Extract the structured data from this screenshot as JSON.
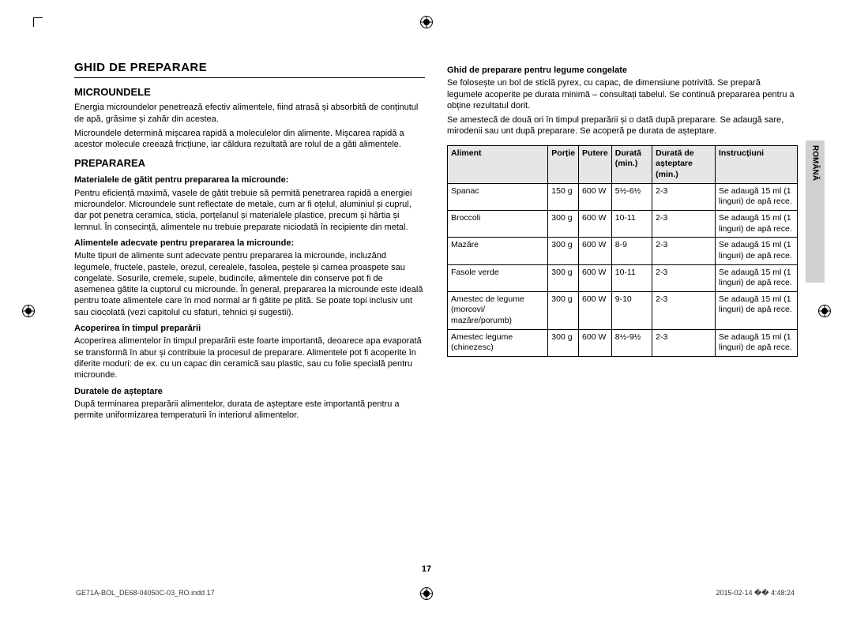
{
  "title": "GHID DE PREPARARE",
  "left": {
    "section1_title": "MICROUNDELE",
    "section1_p1": "Energia microundelor penetrează efectiv alimentele, fiind atrasă și absorbită de conținutul de apă, grăsime și zahăr din acestea.",
    "section1_p2": "Microundele determină mișcarea rapidă a moleculelor din alimente. Mișcarea rapidă a acestor molecule creează fricțiune, iar căldura rezultată are rolul de a găti alimentele.",
    "section2_title": "PREPARAREA",
    "sub1_title": "Materialele de gătit pentru prepararea la microunde:",
    "sub1_body": "Pentru eficiență maximă, vasele de gătit trebuie să permită penetrarea rapidă a energiei microundelor. Microundele sunt reflectate de metale, cum ar fi oțelul, aluminiul și cuprul, dar pot penetra ceramica, sticla, porțelanul și materialele plastice, precum și hârtia și lemnul. În consecință, alimentele nu trebuie preparate niciodată în recipiente din metal.",
    "sub2_title": "Alimentele adecvate pentru prepararea la microunde:",
    "sub2_body": "Multe tipuri de alimente sunt adecvate pentru prepararea la microunde, incluzând legumele, fructele, pastele, orezul, cerealele, fasolea, peștele și carnea proaspete sau congelate. Sosurile, cremele, supele, budincile, alimentele din conserve pot fi de asemenea gătite la cuptorul cu microunde. În general, prepararea la microunde este ideală pentru toate alimentele care în mod normal ar fi gătite pe plită. Se poate topi inclusiv unt sau ciocolată (vezi capitolul cu sfaturi, tehnici și sugestii).",
    "sub3_title": "Acoperirea în timpul preparării",
    "sub3_body": "Acoperirea alimentelor în timpul preparării este foarte importantă, deoarece apa evaporată se transformă în abur și contribuie la procesul de preparare. Alimentele pot fi acoperite în diferite moduri: de ex. cu un capac din ceramică sau plastic, sau cu folie specială pentru microunde.",
    "sub4_title": "Duratele de așteptare",
    "sub4_body": "După terminarea preparării alimentelor, durata de așteptare este importantă pentru a permite uniformizarea temperaturii în interiorul alimentelor."
  },
  "right": {
    "heading": "Ghid de preparare pentru legume congelate",
    "p1": "Se folosește un bol de sticlă pyrex, cu capac, de dimensiune potrivită. Se prepară legumele acoperite pe durata minimă – consultați tabelul. Se continuă prepararea pentru a obține rezultatul dorit.",
    "p2": "Se amestecă de două ori în timpul preparării și o dată după preparare. Se adaugă sare, mirodenii sau unt după preparare. Se acoperă pe durata de așteptare.",
    "table": {
      "headers": [
        "Aliment",
        "Porție",
        "Putere",
        "Durată (min.)",
        "Durată de așteptare (min.)",
        "Instrucțiuni"
      ],
      "rows": [
        [
          "Spanac",
          "150 g",
          "600 W",
          "5½-6½",
          "2-3",
          "Se adaugă 15 ml (1 linguri) de apă rece."
        ],
        [
          "Broccoli",
          "300 g",
          "600 W",
          "10-11",
          "2-3",
          "Se adaugă 15 ml (1 linguri) de apă rece."
        ],
        [
          "Mazăre",
          "300 g",
          "600 W",
          "8-9",
          "2-3",
          "Se adaugă 15 ml (1 linguri) de apă rece."
        ],
        [
          "Fasole verde",
          "300 g",
          "600 W",
          "10-11",
          "2-3",
          "Se adaugă 15 ml (1 linguri) de apă rece."
        ],
        [
          "Amestec de legume (morcovi/ mazăre/porumb)",
          "300 g",
          "600 W",
          "9-10",
          "2-3",
          "Se adaugă 15 ml (1 linguri) de apă rece."
        ],
        [
          "Amestec legume (chinezesc)",
          "300 g",
          "600 W",
          "8½-9½",
          "2-3",
          "Se adaugă 15 ml (1 linguri) de apă rece."
        ]
      ]
    }
  },
  "side_tab": "ROMÂNĂ",
  "page_number": "17",
  "footer_left": "GE71A-BOL_DE68-04050C-03_RO.indd   17",
  "footer_right": "2015-02-14   �� 4:48:24"
}
